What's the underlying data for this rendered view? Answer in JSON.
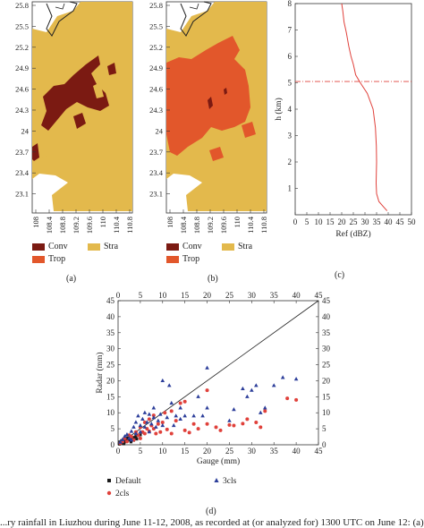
{
  "figure": {
    "panel_labels": [
      "(a)",
      "(b)",
      "(c)",
      "(d)"
    ],
    "caption_fragment": "...ry rainfall in Liuzhou during June 11-12, 2008, as recorded at (or analyzed for) 1300 UTC on June 12: (a) r..."
  },
  "map_panels": {
    "y_ticks": [
      "25.8",
      "25.5",
      "25.2",
      "24.9",
      "24.6",
      "24.3",
      "24",
      "23.7",
      "23.4",
      "23.1"
    ],
    "x_ticks": [
      "108",
      "108.4",
      "108.8",
      "109.2",
      "109.6",
      "110",
      "110.4",
      "110.8"
    ],
    "legend": {
      "conv": {
        "label": "Conv",
        "color": "#7b1a12"
      },
      "stra": {
        "label": "Stra",
        "color": "#e3b94c"
      },
      "trop": {
        "label": "Trop",
        "color": "#e2572b"
      }
    }
  },
  "profile_panel": {
    "chart_data": {
      "type": "line",
      "xlabel": "Ref (dBZ)",
      "ylabel": "h (km)",
      "xlim": [
        0,
        50
      ],
      "ylim": [
        0,
        8
      ],
      "x_ticks": [
        "0",
        "5",
        "10",
        "15",
        "20",
        "25",
        "30",
        "35",
        "40",
        "45",
        "50"
      ],
      "y_ticks": [
        "1",
        "2",
        "3",
        "4",
        "5",
        "6",
        "7",
        "8"
      ],
      "reference_line_h": 5.05,
      "series": [
        {
          "color": "#e0413b",
          "x": [
            39.5,
            38,
            36,
            35,
            34.8,
            34.9,
            35,
            34.9,
            34.5,
            33.5,
            31,
            28,
            26,
            25,
            24,
            23,
            22,
            21,
            20.5,
            20
          ],
          "y": [
            0.15,
            0.3,
            0.5,
            0.8,
            1.2,
            1.6,
            2,
            2.6,
            3.3,
            4,
            4.6,
            5,
            5.3,
            5.7,
            6,
            6.4,
            6.9,
            7.3,
            7.7,
            8
          ]
        }
      ]
    }
  },
  "scatter_panel": {
    "chart_data": {
      "type": "scatter",
      "xlabel": "Gauge (mm)",
      "ylabel": "Radar (mm)",
      "xlim": [
        0,
        45
      ],
      "ylim": [
        0,
        45
      ],
      "ticks": [
        "0",
        "5",
        "10",
        "15",
        "20",
        "25",
        "30",
        "35",
        "40",
        "45"
      ],
      "series": [
        {
          "name": "Default",
          "marker": "square",
          "color": "#1a1a1a",
          "points": [
            [
              0.3,
              0.2
            ],
            [
              0.6,
              0.4
            ],
            [
              1,
              0.6
            ],
            [
              1.4,
              0.8
            ],
            [
              1.8,
              1.1
            ],
            [
              2.2,
              1.4
            ],
            [
              2.6,
              1.6
            ],
            [
              3.1,
              1.9
            ],
            [
              3.6,
              2.3
            ],
            [
              4,
              2.6
            ],
            [
              4.5,
              2.9
            ],
            [
              5,
              3.1
            ],
            [
              0.8,
              1.3
            ],
            [
              1.3,
              0.3
            ],
            [
              2,
              2.2
            ],
            [
              2.9,
              0.9
            ],
            [
              3.5,
              1.4
            ],
            [
              0.4,
              0.9
            ],
            [
              1.6,
              1.8
            ],
            [
              4.2,
              1.8
            ]
          ]
        },
        {
          "name": "2cls",
          "marker": "circle",
          "color": "#e0413b",
          "points": [
            [
              0.5,
              0.5
            ],
            [
              1,
              1
            ],
            [
              1.5,
              2
            ],
            [
              2,
              1
            ],
            [
              2.5,
              3
            ],
            [
              3,
              2.5
            ],
            [
              3.5,
              1.5
            ],
            [
              4,
              4
            ],
            [
              4.5,
              3
            ],
            [
              5,
              5.5
            ],
            [
              5,
              2
            ],
            [
              5.5,
              4
            ],
            [
              6,
              7
            ],
            [
              6,
              3.5
            ],
            [
              6.5,
              5
            ],
            [
              7,
              8
            ],
            [
              7,
              4.2
            ],
            [
              7.5,
              6
            ],
            [
              8,
              9.2
            ],
            [
              8,
              5
            ],
            [
              8.5,
              3.5
            ],
            [
              9,
              6.5
            ],
            [
              9.5,
              4
            ],
            [
              10,
              7
            ],
            [
              10.5,
              10
            ],
            [
              11,
              4.8
            ],
            [
              12,
              10.5
            ],
            [
              12,
              3.5
            ],
            [
              13,
              7.5
            ],
            [
              14,
              13
            ],
            [
              15,
              13.5
            ],
            [
              15,
              4.5
            ],
            [
              16,
              3.8
            ],
            [
              17,
              6.5
            ],
            [
              18,
              5
            ],
            [
              20,
              17
            ],
            [
              20,
              6.5
            ],
            [
              22,
              5.5
            ],
            [
              23,
              4.5
            ],
            [
              25,
              6.2
            ],
            [
              26,
              6
            ],
            [
              28,
              6.6
            ],
            [
              29,
              8
            ],
            [
              31,
              7
            ],
            [
              32,
              5.5
            ],
            [
              33,
              10.5
            ],
            [
              38,
              14.5
            ],
            [
              40,
              14
            ]
          ]
        },
        {
          "name": "3cls",
          "marker": "triangle",
          "color": "#2c3e9a",
          "points": [
            [
              0.5,
              0.8
            ],
            [
              1,
              1.6
            ],
            [
              1.5,
              2.6
            ],
            [
              2,
              3.2
            ],
            [
              2.5,
              2
            ],
            [
              3,
              4.2
            ],
            [
              3,
              1.5
            ],
            [
              3.5,
              5.5
            ],
            [
              4,
              3.5
            ],
            [
              4,
              7
            ],
            [
              4.5,
              9
            ],
            [
              5,
              6
            ],
            [
              5,
              4
            ],
            [
              5.5,
              8
            ],
            [
              6,
              10
            ],
            [
              6,
              5.5
            ],
            [
              6.5,
              7
            ],
            [
              7,
              9.5
            ],
            [
              7,
              4
            ],
            [
              7.5,
              6.5
            ],
            [
              8,
              11.5
            ],
            [
              8,
              8.5
            ],
            [
              8.5,
              5.5
            ],
            [
              9,
              7.5
            ],
            [
              9.5,
              9.5
            ],
            [
              10,
              20
            ],
            [
              10,
              6
            ],
            [
              11,
              8.5
            ],
            [
              11.5,
              18.5
            ],
            [
              12,
              13
            ],
            [
              12.5,
              6
            ],
            [
              13,
              9
            ],
            [
              14,
              11.5
            ],
            [
              14,
              8
            ],
            [
              15,
              9
            ],
            [
              17,
              9
            ],
            [
              18,
              15
            ],
            [
              19,
              9
            ],
            [
              20,
              24
            ],
            [
              20,
              11.5
            ],
            [
              25,
              7.5
            ],
            [
              26,
              11
            ],
            [
              28,
              17.5
            ],
            [
              29,
              15
            ],
            [
              30,
              17
            ],
            [
              31,
              18.5
            ],
            [
              32,
              10
            ],
            [
              33,
              11.5
            ],
            [
              35,
              18.5
            ],
            [
              37,
              21
            ],
            [
              40,
              20.5
            ]
          ]
        }
      ]
    }
  }
}
